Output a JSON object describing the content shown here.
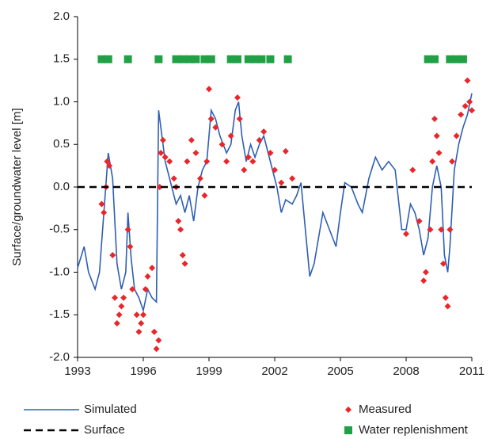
{
  "chart_data": {
    "type": "line",
    "ylabel": "Surface/groundwater level [m]",
    "xlim": [
      1993,
      2011
    ],
    "xticks": [
      1993,
      1996,
      1999,
      2002,
      2005,
      2008,
      2011
    ],
    "ylim": [
      -2,
      2
    ],
    "yticks": [
      {
        "value": -2,
        "label": "-2.0"
      },
      -1.5,
      {
        "value": -1,
        "label": "-1.0"
      },
      -0.5,
      {
        "value": 0,
        "label": "0.0"
      },
      0.5,
      {
        "value": 1,
        "label": "1.0"
      },
      1.5,
      {
        "value": 2,
        "label": "2.0"
      }
    ],
    "series": [
      {
        "name": "Simulated",
        "color": "#2f5fb3",
        "marker": "none",
        "dash": false,
        "x": [
          1993.0,
          1993.3,
          1993.5,
          1993.8,
          1994.0,
          1994.2,
          1994.4,
          1994.6,
          1994.8,
          1995.0,
          1995.2,
          1995.3,
          1995.45,
          1995.6,
          1995.8,
          1996.0,
          1996.2,
          1996.4,
          1996.6,
          1996.7,
          1996.8,
          1997.0,
          1997.3,
          1997.5,
          1997.7,
          1997.9,
          1998.1,
          1998.3,
          1998.5,
          1998.7,
          1998.9,
          1999.0,
          1999.1,
          1999.3,
          1999.5,
          1999.8,
          2000.0,
          2000.2,
          2000.35,
          2000.5,
          2000.7,
          2000.9,
          2001.1,
          2001.3,
          2001.5,
          2001.7,
          2001.9,
          2002.1,
          2002.3,
          2002.5,
          2002.8,
          2003.0,
          2003.2,
          2003.4,
          2003.6,
          2003.8,
          2004.0,
          2004.2,
          2004.5,
          2004.8,
          2005.0,
          2005.2,
          2005.5,
          2005.8,
          2006.0,
          2006.3,
          2006.6,
          2006.9,
          2007.2,
          2007.5,
          2007.8,
          2008.0,
          2008.2,
          2008.4,
          2008.6,
          2008.8,
          2009.0,
          2009.2,
          2009.4,
          2009.6,
          2009.75,
          2009.9,
          2010.0,
          2010.2,
          2010.4,
          2010.6,
          2010.8,
          2011.0
        ],
        "y": [
          -0.95,
          -0.7,
          -1.0,
          -1.2,
          -1.0,
          -0.3,
          0.4,
          0.1,
          -0.9,
          -1.2,
          -1.0,
          -0.3,
          -0.85,
          -1.2,
          -1.3,
          -1.45,
          -1.2,
          -1.3,
          -1.35,
          0.9,
          0.7,
          0.3,
          0.0,
          -0.2,
          -0.1,
          -0.3,
          -0.1,
          -0.4,
          0.0,
          0.2,
          0.3,
          0.6,
          0.9,
          0.8,
          0.6,
          0.4,
          0.5,
          0.9,
          1.0,
          0.6,
          0.3,
          0.5,
          0.35,
          0.5,
          0.6,
          0.4,
          0.2,
          0.0,
          -0.3,
          -0.15,
          -0.2,
          -0.1,
          0.05,
          -0.5,
          -1.05,
          -0.9,
          -0.6,
          -0.3,
          -0.5,
          -0.7,
          -0.3,
          0.05,
          0.0,
          -0.2,
          -0.3,
          0.1,
          0.35,
          0.2,
          0.3,
          0.2,
          -0.5,
          -0.5,
          -0.2,
          -0.3,
          -0.5,
          -0.8,
          -0.6,
          0.0,
          0.25,
          0.0,
          -0.8,
          -1.0,
          -0.7,
          0.2,
          0.5,
          0.7,
          0.85,
          1.1
        ]
      },
      {
        "name": "Measured",
        "color": "#e8262b",
        "marker": "diamond",
        "dash": false,
        "x": [
          1994.1,
          1994.2,
          1994.3,
          1994.35,
          1994.45,
          1994.6,
          1994.7,
          1994.8,
          1994.9,
          1995.0,
          1995.1,
          1995.3,
          1995.4,
          1995.5,
          1995.7,
          1995.8,
          1995.9,
          1996.0,
          1996.1,
          1996.2,
          1996.4,
          1996.5,
          1996.6,
          1996.7,
          1996.75,
          1996.8,
          1996.9,
          1997.0,
          1997.2,
          1997.4,
          1997.5,
          1997.6,
          1997.7,
          1997.8,
          1997.9,
          1998.0,
          1998.2,
          1998.4,
          1998.6,
          1998.8,
          1998.9,
          1999.0,
          1999.1,
          1999.3,
          1999.6,
          1999.8,
          2000.0,
          2000.3,
          2000.4,
          2000.6,
          2000.8,
          2001.0,
          2001.3,
          2001.5,
          2001.8,
          2002.0,
          2002.3,
          2002.5,
          2002.8,
          2008.0,
          2008.3,
          2008.6,
          2008.8,
          2008.9,
          2009.1,
          2009.2,
          2009.3,
          2009.4,
          2009.5,
          2009.6,
          2009.7,
          2009.8,
          2009.9,
          2010.0,
          2010.1,
          2010.3,
          2010.5,
          2010.7,
          2010.8,
          2010.9,
          2011.0
        ],
        "y": [
          -0.2,
          -0.3,
          0.0,
          0.3,
          0.25,
          -0.8,
          -1.3,
          -1.6,
          -1.5,
          -1.4,
          -1.3,
          -0.5,
          -0.7,
          -1.2,
          -1.5,
          -1.7,
          -1.6,
          -1.5,
          -1.2,
          -1.05,
          -0.95,
          -1.7,
          -1.9,
          -1.8,
          0.0,
          0.4,
          0.55,
          0.35,
          0.3,
          0.1,
          0.0,
          -0.4,
          -0.5,
          -0.8,
          -0.9,
          0.3,
          0.55,
          0.4,
          0.1,
          -0.1,
          0.3,
          1.15,
          0.8,
          0.7,
          0.5,
          0.3,
          0.6,
          1.05,
          0.8,
          0.2,
          0.35,
          0.3,
          0.55,
          0.65,
          0.4,
          0.2,
          0.05,
          0.42,
          0.1,
          -0.55,
          0.2,
          -0.4,
          -1.1,
          -1.0,
          -0.5,
          0.3,
          0.8,
          0.6,
          0.4,
          -0.5,
          -0.9,
          -1.3,
          -1.4,
          -0.5,
          0.3,
          0.6,
          0.85,
          0.95,
          1.25,
          1.0,
          0.9
        ]
      },
      {
        "name": "Surface",
        "color": "#000000",
        "marker": "none",
        "dash": true,
        "x": [
          1993,
          2011
        ],
        "y": [
          0,
          0
        ]
      },
      {
        "name": "Water replenishment",
        "color": "#22a046",
        "marker": "square",
        "dash": false,
        "x": [
          1994.1,
          1994.4,
          1995.3,
          1996.7,
          1997.5,
          1997.8,
          1998.1,
          1998.4,
          1998.8,
          1999.1,
          2000.0,
          2000.3,
          2000.8,
          2001.1,
          2001.4,
          2001.8,
          2002.6,
          2009.0,
          2009.3,
          2010.0,
          2010.3,
          2010.6
        ],
        "y": [
          1.5,
          1.5,
          1.5,
          1.5,
          1.5,
          1.5,
          1.5,
          1.5,
          1.5,
          1.5,
          1.5,
          1.5,
          1.5,
          1.5,
          1.5,
          1.5,
          1.5,
          1.5,
          1.5,
          1.5,
          1.5,
          1.5
        ]
      }
    ]
  }
}
